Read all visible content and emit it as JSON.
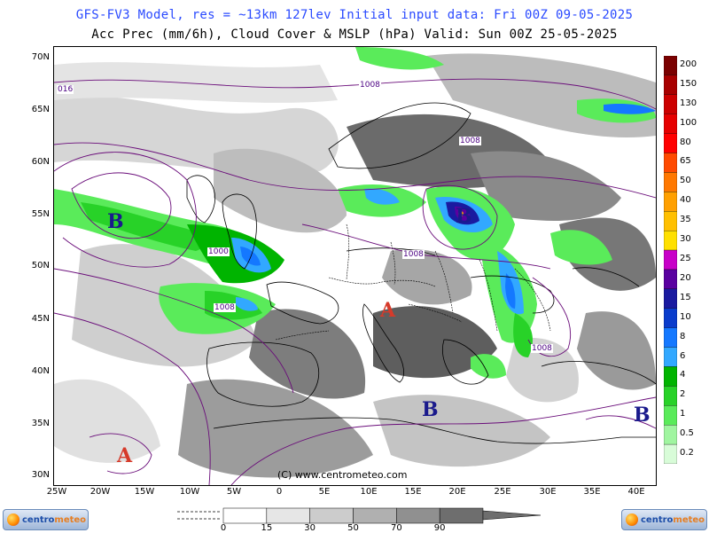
{
  "header": {
    "line1": "GFS-FV3 Model, res = ~13km 127lev   Initial input data: Fri 00Z 09-05-2025",
    "line2": "Acc Prec (mm/6h), Cloud Cover & MSLP (hPa)  Valid: Sun 00Z 25-05-2025"
  },
  "map": {
    "lat_labels": [
      "70N",
      "65N",
      "60N",
      "55N",
      "50N",
      "45N",
      "40N",
      "35N",
      "30N"
    ],
    "lon_labels": [
      "25W",
      "20W",
      "15W",
      "10W",
      "5W",
      "0",
      "5E",
      "10E",
      "15E",
      "20E",
      "25E",
      "30E",
      "35E",
      "40E"
    ],
    "copyright": "(C) www.centrometeo.com",
    "pressure_centers": [
      {
        "label": "B",
        "type": "low"
      },
      {
        "label": "B",
        "type": "low"
      },
      {
        "label": "A",
        "type": "high"
      },
      {
        "label": "B",
        "type": "low"
      },
      {
        "label": "B",
        "type": "low"
      },
      {
        "label": "A",
        "type": "high"
      }
    ],
    "isobar_labels": [
      "016",
      "1008",
      "1008",
      "1000",
      "1008",
      "1008",
      "1008"
    ],
    "colors": {
      "low": "#1a1a8c",
      "high": "#d63a2a",
      "isobar": "#6a0d7a",
      "land_outline": "#000000"
    }
  },
  "precip_scale": {
    "labels": [
      "200",
      "150",
      "130",
      "100",
      "80",
      "65",
      "50",
      "40",
      "35",
      "30",
      "25",
      "20",
      "15",
      "10",
      "8",
      "6",
      "4",
      "2",
      "1",
      "0.5",
      "0.2"
    ],
    "colors": [
      "#7a0000",
      "#a80000",
      "#cc0000",
      "#e60000",
      "#ff0000",
      "#ff4a00",
      "#ff7800",
      "#ffa000",
      "#ffc000",
      "#ffe000",
      "#c800c8",
      "#5a00a0",
      "#1a1aa0",
      "#0a3ccc",
      "#1478ff",
      "#32a8ff",
      "#00b400",
      "#28d228",
      "#5aeb5a",
      "#a0f5a0",
      "#d8fcd8"
    ]
  },
  "cloud_scale": {
    "labels": [
      "0",
      "15",
      "30",
      "50",
      "70",
      "90"
    ],
    "colors": [
      "#ffffff",
      "#e6e6e6",
      "#cccccc",
      "#b0b0b0",
      "#909090",
      "#6e6e6e"
    ]
  },
  "logos": {
    "left": {
      "part1": "centro",
      "part2": "meteo"
    },
    "right": {
      "part1": "centro",
      "part2": "meteo"
    }
  }
}
